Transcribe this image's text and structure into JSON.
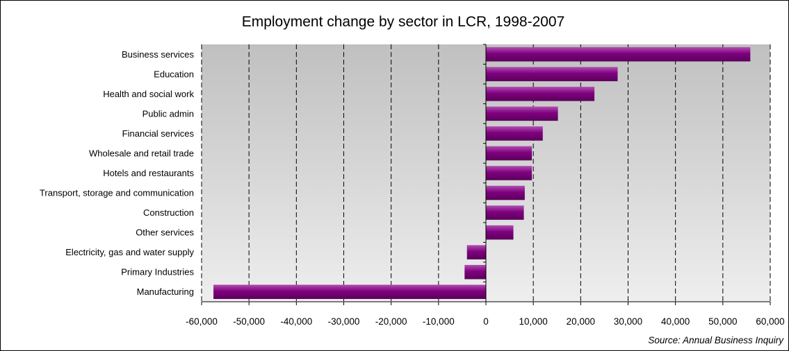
{
  "chart_data": {
    "type": "bar",
    "orientation": "horizontal",
    "title": "Employment change by sector in LCR, 1998-2007",
    "source": "Source: Annual Business Inquiry",
    "categories": [
      "Business services",
      "Education",
      "Health and social work",
      "Public admin",
      "Financial services",
      "Wholesale and retail trade",
      "Hotels and restaurants",
      "Transport, storage and communication",
      "Construction",
      "Other services",
      "Electricity, gas and water supply",
      "Primary Industries",
      "Manufacturing"
    ],
    "values": [
      55800,
      27800,
      22900,
      15200,
      12000,
      9700,
      9700,
      8200,
      8000,
      5800,
      -4000,
      -4500,
      -57500
    ],
    "xlim": [
      -60000,
      60000
    ],
    "xticks": [
      -60000,
      -50000,
      -40000,
      -30000,
      -20000,
      -10000,
      0,
      10000,
      20000,
      30000,
      40000,
      50000,
      60000
    ],
    "xtick_labels": [
      "-60,000",
      "-50,000",
      "-40,000",
      "-30,000",
      "-20,000",
      "-10,000",
      "0",
      "10,000",
      "20,000",
      "30,000",
      "40,000",
      "50,000",
      "60,000"
    ],
    "grid": "vertical dashed",
    "legend": "none",
    "colors": {
      "bar": "#800080",
      "bar_light": "#b050b0",
      "bar_dark": "#5a005a",
      "plot_top": "#c0c0c0",
      "plot_bottom": "#eeeeee",
      "grid": "#000000"
    }
  }
}
